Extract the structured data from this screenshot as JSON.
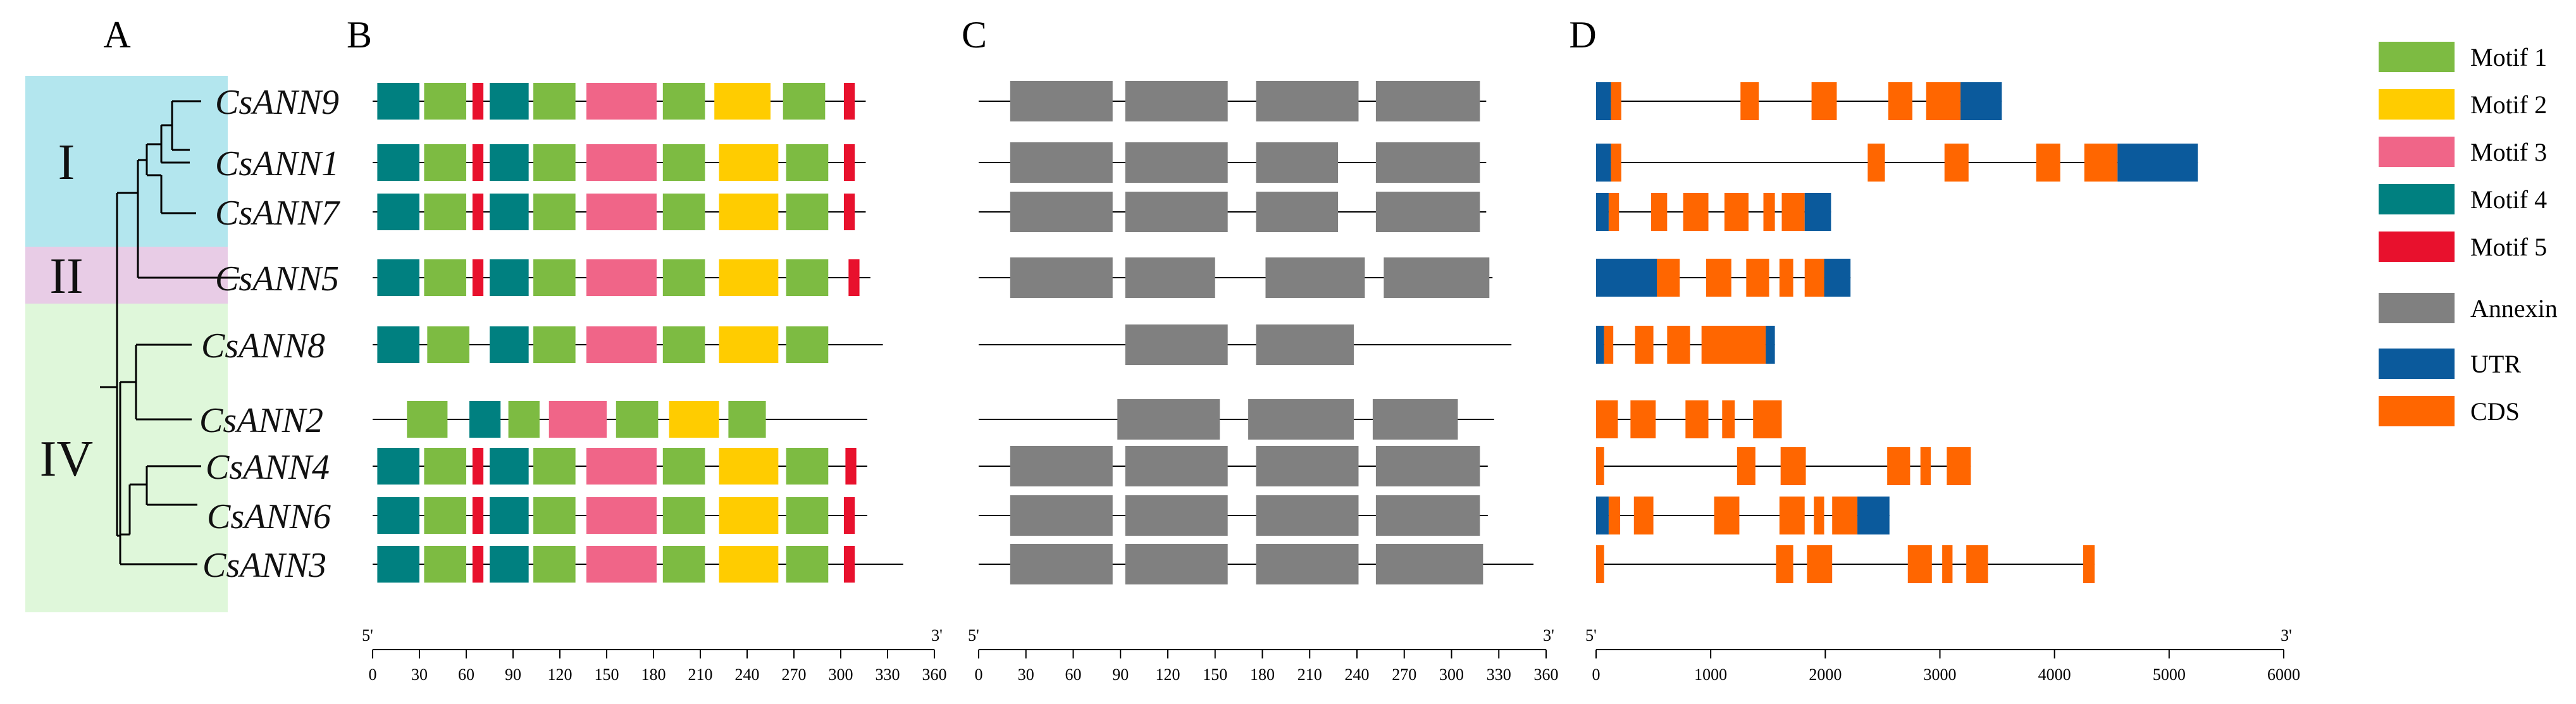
{
  "panel_labels": {
    "a": "A",
    "b": "B",
    "c": "C",
    "d": "D"
  },
  "groups": [
    {
      "label": "I",
      "color": "#b3e6ee",
      "first_row": 0,
      "rows": 3
    },
    {
      "label": "II",
      "color": "#e8cce6",
      "first_row": 3,
      "rows": 1
    },
    {
      "label": "IV",
      "color": "#dff7da",
      "first_row": 4,
      "rows": 5
    }
  ],
  "genes": [
    "CsANN9",
    "CsANN1",
    "CsANN7",
    "CsANN5",
    "CsANN8",
    "CsANN2",
    "CsANN4",
    "CsANN6",
    "CsANN3"
  ],
  "colors": {
    "Motif 1": "#7dbb42",
    "Motif 2": "#ffcc00",
    "Motif 3": "#f06588",
    "Motif 4": "#008080",
    "Motif 5": "#e8112d",
    "Annexin": "#808080",
    "UTR": "#0b5a9c",
    "CDS": "#ff6600"
  },
  "legend": [
    {
      "name": "Motif 1",
      "color": "#7dbb42"
    },
    {
      "name": "Motif 2",
      "color": "#ffcc00"
    },
    {
      "name": "Motif 3",
      "color": "#f06588"
    },
    {
      "name": "Motif 4",
      "color": "#008080"
    },
    {
      "name": "Motif 5",
      "color": "#e8112d"
    },
    {
      "name": "Annexin",
      "color": "#808080"
    },
    {
      "name": "UTR",
      "color": "#0b5a9c"
    },
    {
      "name": "CDS",
      "color": "#ff6600"
    }
  ],
  "motifs": {
    "axis_label_5": "5'",
    "axis_label_3": "3'",
    "axis": {
      "min": 0,
      "max": 360,
      "ticks": [
        0,
        30,
        60,
        90,
        120,
        150,
        180,
        210,
        240,
        270,
        300,
        330,
        360
      ]
    },
    "proteins": [
      {
        "gene": "CsANN9",
        "length": 316,
        "blocks": [
          [
            "Motif 4",
            3,
            30
          ],
          [
            "Motif 1",
            33,
            60
          ],
          [
            "Motif 5",
            64,
            71
          ],
          [
            "Motif 4",
            75,
            100
          ],
          [
            "Motif 1",
            103,
            130
          ],
          [
            "Motif 3",
            137,
            182
          ],
          [
            "Motif 1",
            186,
            213
          ],
          [
            "Motif 2",
            219,
            255
          ],
          [
            "Motif 1",
            263,
            290
          ],
          [
            "Motif 5",
            302,
            309
          ]
        ]
      },
      {
        "gene": "CsANN1",
        "length": 316,
        "blocks": [
          [
            "Motif 4",
            3,
            30
          ],
          [
            "Motif 1",
            33,
            60
          ],
          [
            "Motif 5",
            64,
            71
          ],
          [
            "Motif 4",
            75,
            100
          ],
          [
            "Motif 1",
            103,
            130
          ],
          [
            "Motif 3",
            137,
            182
          ],
          [
            "Motif 1",
            186,
            213
          ],
          [
            "Motif 2",
            222,
            260
          ],
          [
            "Motif 1",
            265,
            292
          ],
          [
            "Motif 5",
            302,
            309
          ]
        ]
      },
      {
        "gene": "CsANN7",
        "length": 316,
        "blocks": [
          [
            "Motif 4",
            3,
            30
          ],
          [
            "Motif 1",
            33,
            60
          ],
          [
            "Motif 5",
            64,
            71
          ],
          [
            "Motif 4",
            75,
            100
          ],
          [
            "Motif 1",
            103,
            130
          ],
          [
            "Motif 3",
            137,
            182
          ],
          [
            "Motif 1",
            186,
            213
          ],
          [
            "Motif 2",
            222,
            260
          ],
          [
            "Motif 1",
            265,
            292
          ],
          [
            "Motif 5",
            302,
            309
          ]
        ]
      },
      {
        "gene": "CsANN5",
        "length": 319,
        "blocks": [
          [
            "Motif 4",
            3,
            30
          ],
          [
            "Motif 1",
            33,
            60
          ],
          [
            "Motif 5",
            64,
            71
          ],
          [
            "Motif 4",
            75,
            100
          ],
          [
            "Motif 1",
            103,
            130
          ],
          [
            "Motif 3",
            137,
            182
          ],
          [
            "Motif 1",
            186,
            213
          ],
          [
            "Motif 2",
            222,
            260
          ],
          [
            "Motif 1",
            265,
            292
          ],
          [
            "Motif 5",
            305,
            312
          ]
        ]
      },
      {
        "gene": "CsANN8",
        "length": 327,
        "blocks": [
          [
            "Motif 4",
            3,
            30
          ],
          [
            "Motif 1",
            35,
            62
          ],
          [
            "Motif 4",
            75,
            100
          ],
          [
            "Motif 1",
            103,
            130
          ],
          [
            "Motif 3",
            137,
            182
          ],
          [
            "Motif 1",
            186,
            213
          ],
          [
            "Motif 2",
            222,
            260
          ],
          [
            "Motif 1",
            265,
            292
          ]
        ]
      },
      {
        "gene": "CsANN2",
        "length": 317,
        "blocks": [
          [
            "Motif 1",
            22,
            48
          ],
          [
            "Motif 4",
            62,
            82
          ],
          [
            "Motif 1",
            87,
            107
          ],
          [
            "Motif 3",
            113,
            150
          ],
          [
            "Motif 1",
            156,
            183
          ],
          [
            "Motif 2",
            190,
            222
          ],
          [
            "Motif 1",
            228,
            252
          ]
        ]
      },
      {
        "gene": "CsANN4",
        "length": 317,
        "blocks": [
          [
            "Motif 4",
            3,
            30
          ],
          [
            "Motif 1",
            33,
            60
          ],
          [
            "Motif 5",
            64,
            71
          ],
          [
            "Motif 4",
            75,
            100
          ],
          [
            "Motif 1",
            103,
            130
          ],
          [
            "Motif 3",
            137,
            182
          ],
          [
            "Motif 1",
            186,
            213
          ],
          [
            "Motif 2",
            222,
            260
          ],
          [
            "Motif 1",
            265,
            292
          ],
          [
            "Motif 5",
            303,
            310
          ]
        ]
      },
      {
        "gene": "CsANN6",
        "length": 317,
        "blocks": [
          [
            "Motif 4",
            3,
            30
          ],
          [
            "Motif 1",
            33,
            60
          ],
          [
            "Motif 5",
            64,
            71
          ],
          [
            "Motif 4",
            75,
            100
          ],
          [
            "Motif 1",
            103,
            130
          ],
          [
            "Motif 3",
            137,
            182
          ],
          [
            "Motif 1",
            186,
            213
          ],
          [
            "Motif 2",
            222,
            260
          ],
          [
            "Motif 1",
            265,
            292
          ],
          [
            "Motif 5",
            302,
            309
          ]
        ]
      },
      {
        "gene": "CsANN3",
        "length": 340,
        "blocks": [
          [
            "Motif 4",
            3,
            30
          ],
          [
            "Motif 1",
            33,
            60
          ],
          [
            "Motif 5",
            64,
            71
          ],
          [
            "Motif 4",
            75,
            100
          ],
          [
            "Motif 1",
            103,
            130
          ],
          [
            "Motif 3",
            137,
            182
          ],
          [
            "Motif 1",
            186,
            213
          ],
          [
            "Motif 2",
            222,
            260
          ],
          [
            "Motif 1",
            265,
            292
          ],
          [
            "Motif 5",
            302,
            309
          ]
        ]
      }
    ]
  },
  "domains": {
    "axis_label_5": "5'",
    "axis_label_3": "3'",
    "axis": {
      "min": 0,
      "max": 360,
      "ticks": [
        0,
        30,
        60,
        90,
        120,
        150,
        180,
        210,
        240,
        270,
        300,
        330,
        360
      ]
    },
    "proteins": [
      {
        "gene": "CsANN9",
        "length": 322,
        "blocks": [
          [
            20,
            85
          ],
          [
            93,
            158
          ],
          [
            176,
            241
          ],
          [
            252,
            318
          ]
        ]
      },
      {
        "gene": "CsANN1",
        "length": 322,
        "blocks": [
          [
            20,
            85
          ],
          [
            93,
            158
          ],
          [
            176,
            228
          ],
          [
            252,
            318
          ]
        ]
      },
      {
        "gene": "CsANN7",
        "length": 322,
        "blocks": [
          [
            20,
            85
          ],
          [
            93,
            158
          ],
          [
            176,
            228
          ],
          [
            252,
            318
          ]
        ]
      },
      {
        "gene": "CsANN5",
        "length": 326,
        "blocks": [
          [
            20,
            85
          ],
          [
            93,
            150
          ],
          [
            182,
            245
          ],
          [
            257,
            324
          ]
        ]
      },
      {
        "gene": "CsANN8",
        "length": 338,
        "blocks": [
          [
            93,
            158
          ],
          [
            176,
            238
          ]
        ]
      },
      {
        "gene": "CsANN2",
        "length": 327,
        "blocks": [
          [
            88,
            153
          ],
          [
            171,
            238
          ],
          [
            250,
            304
          ]
        ]
      },
      {
        "gene": "CsANN4",
        "length": 323,
        "blocks": [
          [
            20,
            85
          ],
          [
            93,
            158
          ],
          [
            176,
            241
          ],
          [
            252,
            318
          ]
        ]
      },
      {
        "gene": "CsANN6",
        "length": 323,
        "blocks": [
          [
            20,
            85
          ],
          [
            93,
            158
          ],
          [
            176,
            241
          ],
          [
            252,
            318
          ]
        ]
      },
      {
        "gene": "CsANN3",
        "length": 352,
        "blocks": [
          [
            20,
            85
          ],
          [
            93,
            158
          ],
          [
            176,
            241
          ],
          [
            252,
            320
          ]
        ]
      }
    ]
  },
  "gene_structures": {
    "axis_label_5": "5'",
    "axis_label_3": "3'",
    "axis": {
      "min": 0,
      "max": 6000,
      "ticks": [
        0,
        1000,
        2000,
        3000,
        4000,
        5000,
        6000
      ]
    },
    "genes": [
      {
        "gene": "CsANN9",
        "length": 3540,
        "blocks": [
          [
            "UTR",
            0,
            130
          ],
          [
            "CDS",
            130,
            220
          ],
          [
            "CDS",
            1260,
            1420
          ],
          [
            "CDS",
            1880,
            2100
          ],
          [
            "CDS",
            2550,
            2760
          ],
          [
            "CDS",
            2880,
            3180
          ],
          [
            "UTR",
            3180,
            3540
          ]
        ]
      },
      {
        "gene": "CsANN1",
        "length": 5250,
        "blocks": [
          [
            "UTR",
            0,
            130
          ],
          [
            "CDS",
            130,
            220
          ],
          [
            "CDS",
            2370,
            2520
          ],
          [
            "CDS",
            3040,
            3250
          ],
          [
            "CDS",
            3840,
            4050
          ],
          [
            "CDS",
            4260,
            4550
          ],
          [
            "UTR",
            4550,
            5250
          ]
        ]
      },
      {
        "gene": "CsANN7",
        "length": 2050,
        "blocks": [
          [
            "UTR",
            0,
            110
          ],
          [
            "CDS",
            110,
            200
          ],
          [
            "CDS",
            480,
            620
          ],
          [
            "CDS",
            760,
            980
          ],
          [
            "CDS",
            1120,
            1330
          ],
          [
            "CDS",
            1460,
            1560
          ],
          [
            "CDS",
            1620,
            1820
          ],
          [
            "UTR",
            1820,
            2050
          ]
        ]
      },
      {
        "gene": "CsANN5",
        "length": 2220,
        "blocks": [
          [
            "UTR",
            0,
            530
          ],
          [
            "CDS",
            530,
            730
          ],
          [
            "CDS",
            960,
            1180
          ],
          [
            "CDS",
            1310,
            1510
          ],
          [
            "CDS",
            1600,
            1720
          ],
          [
            "CDS",
            1820,
            1990
          ],
          [
            "UTR",
            1990,
            2220
          ]
        ]
      },
      {
        "gene": "CsANN8",
        "length": 1560,
        "blocks": [
          [
            "UTR",
            0,
            70
          ],
          [
            "CDS",
            70,
            150
          ],
          [
            "CDS",
            340,
            500
          ],
          [
            "CDS",
            620,
            820
          ],
          [
            "CDS",
            920,
            1480
          ],
          [
            "UTR",
            1480,
            1560
          ]
        ]
      },
      {
        "gene": "CsANN2",
        "length": 1620,
        "blocks": [
          [
            "CDS",
            0,
            190
          ],
          [
            "CDS",
            300,
            520
          ],
          [
            "CDS",
            780,
            980
          ],
          [
            "CDS",
            1100,
            1210
          ],
          [
            "CDS",
            1370,
            1620
          ]
        ]
      },
      {
        "gene": "CsANN4",
        "length": 3270,
        "blocks": [
          [
            "CDS",
            0,
            70
          ],
          [
            "CDS",
            1230,
            1390
          ],
          [
            "CDS",
            1610,
            1830
          ],
          [
            "CDS",
            2540,
            2740
          ],
          [
            "CDS",
            2830,
            2920
          ],
          [
            "CDS",
            3060,
            3270
          ]
        ]
      },
      {
        "gene": "CsANN6",
        "length": 2560,
        "blocks": [
          [
            "UTR",
            0,
            110
          ],
          [
            "CDS",
            110,
            210
          ],
          [
            "CDS",
            330,
            500
          ],
          [
            "CDS",
            1030,
            1250
          ],
          [
            "CDS",
            1600,
            1820
          ],
          [
            "CDS",
            1900,
            1990
          ],
          [
            "CDS",
            2060,
            2280
          ],
          [
            "UTR",
            2280,
            2560
          ]
        ]
      },
      {
        "gene": "CsANN3",
        "length": 4350,
        "blocks": [
          [
            "CDS",
            0,
            70
          ],
          [
            "CDS",
            1570,
            1720
          ],
          [
            "CDS",
            1840,
            2060
          ],
          [
            "CDS",
            2720,
            2930
          ],
          [
            "CDS",
            3020,
            3110
          ],
          [
            "CDS",
            3230,
            3420
          ],
          [
            "CDS",
            4250,
            4350
          ]
        ]
      }
    ]
  }
}
